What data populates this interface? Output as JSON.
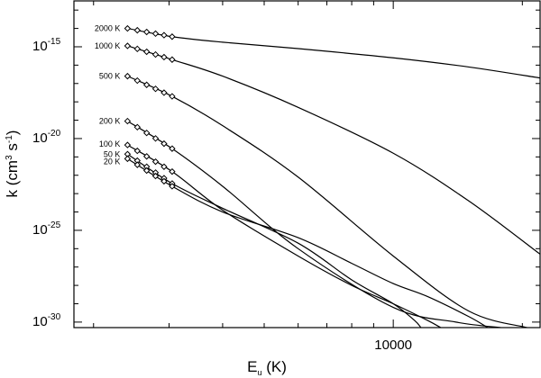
{
  "chart_data": {
    "type": "line",
    "title": "",
    "xlabel": {
      "base": "E",
      "subscript": "u",
      "rest": " (K)"
    },
    "ylabel": {
      "prefix": "k (cm",
      "sup1": "3",
      "mid": " s",
      "sup2": "-1",
      "suffix": ")"
    },
    "xscale": "log",
    "yscale": "log",
    "xlim": [
      1800,
      22000
    ],
    "ylim_log10": [
      -30.3,
      -12.5
    ],
    "x_ticks": [
      {
        "value": 10000,
        "label": "10000"
      }
    ],
    "y_ticks": [
      {
        "exp": -15,
        "base": "10",
        "label": "-15"
      },
      {
        "exp": -20,
        "base": "10",
        "label": "-20"
      },
      {
        "exp": -25,
        "base": "10",
        "label": "-25"
      },
      {
        "exp": -30,
        "base": "10",
        "label": "-30"
      }
    ],
    "marker_x": [
      2400,
      2530,
      2660,
      2790,
      2920,
      3050
    ],
    "series": [
      {
        "name": "2000 K",
        "x": [
          2400,
          3050,
          4000,
          6000,
          10000,
          15000,
          22000
        ],
        "log10_k": [
          -14.0,
          -14.45,
          -14.75,
          -15.1,
          -15.6,
          -16.1,
          -16.7
        ]
      },
      {
        "name": "1000 K",
        "x": [
          2400,
          3050,
          4000,
          6000,
          10000,
          15000,
          22000
        ],
        "log10_k": [
          -14.95,
          -15.7,
          -16.6,
          -18.3,
          -20.8,
          -23.4,
          -26.3
        ]
      },
      {
        "name": "500 K",
        "x": [
          2400,
          3050,
          4000,
          6000,
          10000,
          15000,
          20500
        ],
        "log10_k": [
          -16.6,
          -17.7,
          -19.3,
          -22.1,
          -26.4,
          -29.4,
          -30.3
        ]
      },
      {
        "name": "200 K",
        "x": [
          2400,
          3050,
          4000,
          6000,
          10000,
          14000,
          17800
        ],
        "log10_k": [
          -19.05,
          -20.55,
          -22.6,
          -26.0,
          -29.2,
          -30.0,
          -30.3
        ]
      },
      {
        "name": "100 K",
        "x": [
          2400,
          3050,
          4000,
          6000,
          8000,
          10000,
          12000,
          12900
        ],
        "log10_k": [
          -20.35,
          -21.8,
          -23.9,
          -26.4,
          -28.0,
          -29.0,
          -29.9,
          -30.3
        ]
      },
      {
        "name": "50 K",
        "x": [
          2400,
          3050,
          4000,
          6000,
          8000,
          10000,
          11200,
          11600
        ],
        "log10_k": [
          -20.85,
          -22.45,
          -23.8,
          -25.7,
          -27.7,
          -29.0,
          -29.9,
          -30.3
        ]
      },
      {
        "name": "20 K",
        "x": [
          2400,
          3050,
          4000,
          6000,
          8000,
          10000,
          12000,
          15000,
          16600
        ],
        "log10_k": [
          -21.1,
          -22.6,
          -24.0,
          -25.4,
          -26.8,
          -27.9,
          -28.6,
          -29.7,
          -30.3
        ]
      }
    ]
  }
}
